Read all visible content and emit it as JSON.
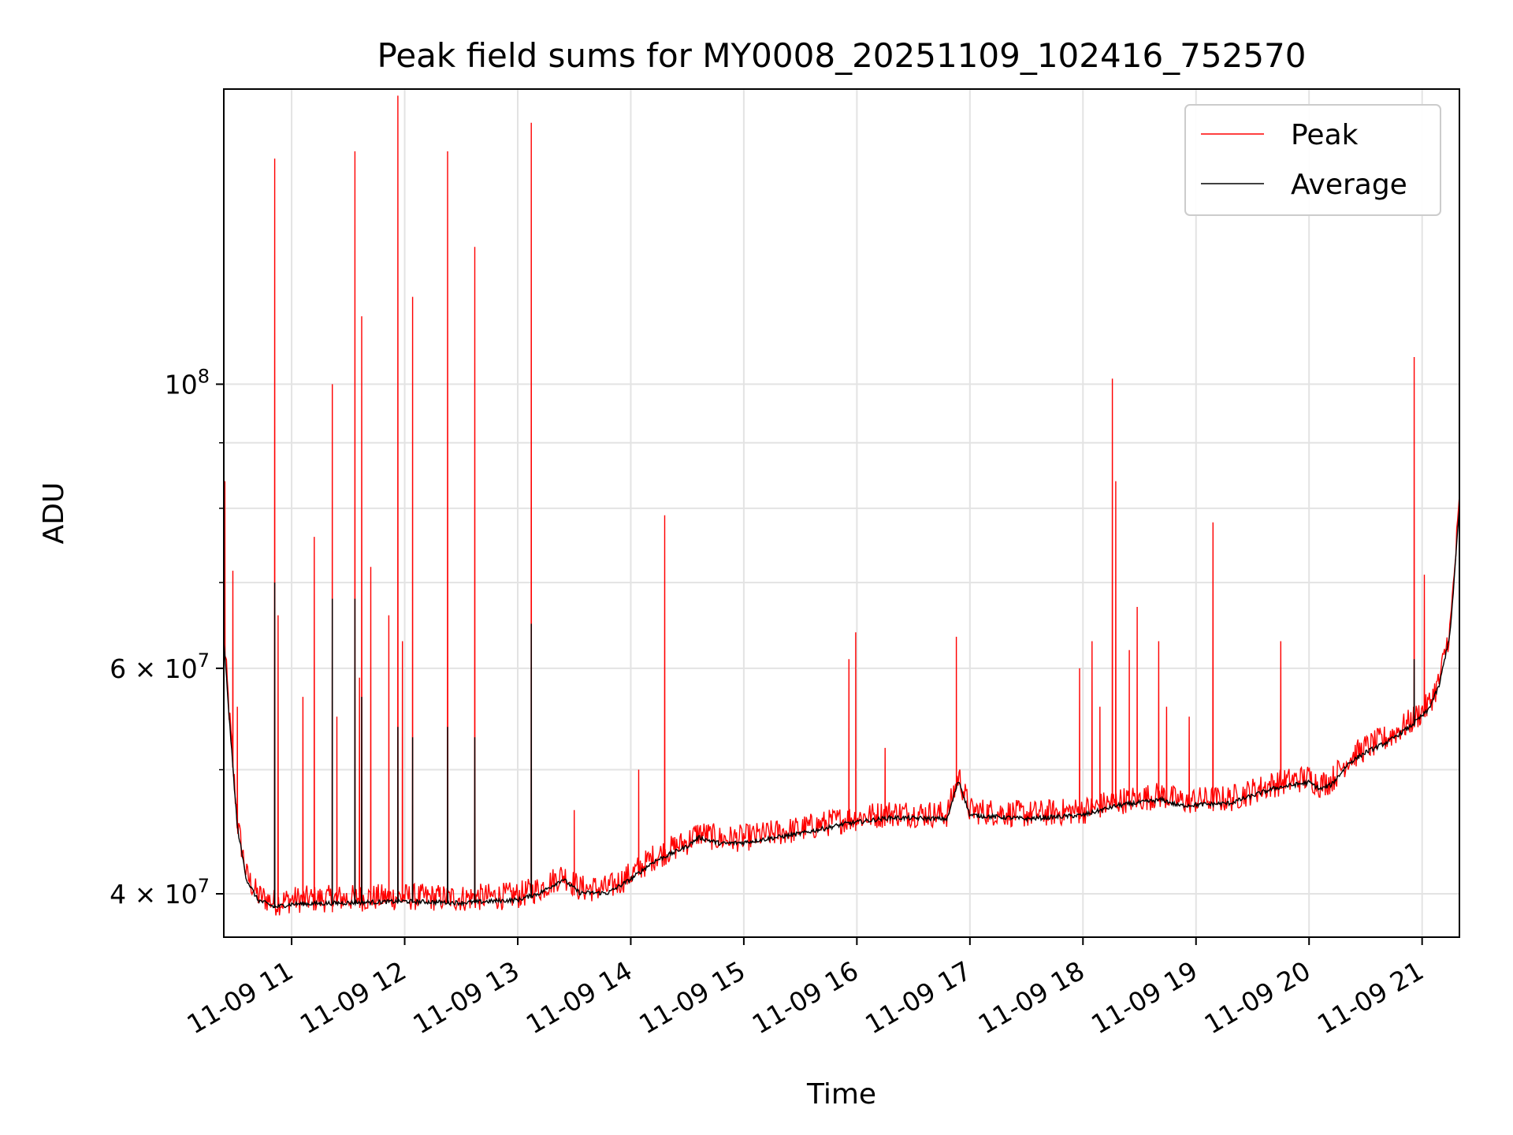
{
  "chart_data": {
    "type": "line",
    "title": "Peak field sums for MY0008_20251109_102416_752570",
    "xlabel": "Time",
    "ylabel": "ADU",
    "yscale": "log",
    "grid": true,
    "legend_position": "top-right",
    "xlim_hours": [
      10.4,
      21.33
    ],
    "ylim": [
      37000000,
      170000000
    ],
    "x_ticks": [
      {
        "hour": 11,
        "label": "11-09 11"
      },
      {
        "hour": 12,
        "label": "11-09 12"
      },
      {
        "hour": 13,
        "label": "11-09 13"
      },
      {
        "hour": 14,
        "label": "11-09 14"
      },
      {
        "hour": 15,
        "label": "11-09 15"
      },
      {
        "hour": 16,
        "label": "11-09 16"
      },
      {
        "hour": 17,
        "label": "11-09 17"
      },
      {
        "hour": 18,
        "label": "11-09 18"
      },
      {
        "hour": 19,
        "label": "11-09 19"
      },
      {
        "hour": 20,
        "label": "11-09 20"
      },
      {
        "hour": 21,
        "label": "11-09 21"
      }
    ],
    "y_ticks": [
      {
        "value": 40000000,
        "base": "4",
        "exp": "7"
      },
      {
        "value": 60000000,
        "base": "6",
        "exp": "7"
      },
      {
        "value": 100000000,
        "base": "10",
        "exp": "8"
      }
    ],
    "y_minor_ticks": [
      50000000,
      70000000,
      80000000,
      90000000
    ],
    "series": [
      {
        "name": "Peak",
        "color": "#ff0000",
        "spikes": [
          [
            10.41,
            84000000
          ],
          [
            10.48,
            71500000
          ],
          [
            10.52,
            56000000
          ],
          [
            10.85,
            150000000
          ],
          [
            10.88,
            66000000
          ],
          [
            11.1,
            57000000
          ],
          [
            11.2,
            76000000
          ],
          [
            11.36,
            100000000
          ],
          [
            11.4,
            55000000
          ],
          [
            11.56,
            152000000
          ],
          [
            11.6,
            59000000
          ],
          [
            11.62,
            113000000
          ],
          [
            11.7,
            72000000
          ],
          [
            11.86,
            66000000
          ],
          [
            11.94,
            168000000
          ],
          [
            11.98,
            63000000
          ],
          [
            12.07,
            117000000
          ],
          [
            12.38,
            152000000
          ],
          [
            12.62,
            128000000
          ],
          [
            13.12,
            160000000
          ],
          [
            13.5,
            46500000
          ],
          [
            14.07,
            50000000
          ],
          [
            14.3,
            79000000
          ],
          [
            15.93,
            61000000
          ],
          [
            15.99,
            64000000
          ],
          [
            16.25,
            52000000
          ],
          [
            16.88,
            63500000
          ],
          [
            17.97,
            60000000
          ],
          [
            18.08,
            63000000
          ],
          [
            18.15,
            56000000
          ],
          [
            18.26,
            101000000
          ],
          [
            18.29,
            84000000
          ],
          [
            18.41,
            62000000
          ],
          [
            18.48,
            67000000
          ],
          [
            18.67,
            63000000
          ],
          [
            18.74,
            56000000
          ],
          [
            18.94,
            55000000
          ],
          [
            19.15,
            78000000
          ],
          [
            19.75,
            63000000
          ],
          [
            20.93,
            105000000
          ],
          [
            21.02,
            71000000
          ]
        ]
      },
      {
        "name": "Average",
        "color": "#000000",
        "baseline": [
          [
            10.4,
            63000000
          ],
          [
            10.46,
            53000000
          ],
          [
            10.52,
            45000000
          ],
          [
            10.6,
            41000000
          ],
          [
            10.7,
            39500000
          ],
          [
            10.85,
            39000000
          ],
          [
            11.0,
            39200000
          ],
          [
            11.5,
            39300000
          ],
          [
            12.0,
            39400000
          ],
          [
            12.5,
            39300000
          ],
          [
            13.0,
            39500000
          ],
          [
            13.2,
            40000000
          ],
          [
            13.4,
            41000000
          ],
          [
            13.55,
            40000000
          ],
          [
            13.8,
            40000000
          ],
          [
            14.0,
            41000000
          ],
          [
            14.2,
            42300000
          ],
          [
            14.5,
            43500000
          ],
          [
            14.6,
            44200000
          ],
          [
            14.8,
            43700000
          ],
          [
            15.0,
            43800000
          ],
          [
            15.5,
            44500000
          ],
          [
            15.9,
            45300000
          ],
          [
            16.3,
            45800000
          ],
          [
            16.8,
            45700000
          ],
          [
            16.9,
            49000000
          ],
          [
            17.0,
            46000000
          ],
          [
            17.5,
            45700000
          ],
          [
            18.0,
            46000000
          ],
          [
            18.3,
            46800000
          ],
          [
            18.7,
            47300000
          ],
          [
            18.85,
            46800000
          ],
          [
            19.3,
            47000000
          ],
          [
            19.7,
            48300000
          ],
          [
            20.0,
            48800000
          ],
          [
            20.1,
            48200000
          ],
          [
            20.2,
            48600000
          ],
          [
            20.35,
            50500000
          ],
          [
            20.5,
            51500000
          ],
          [
            20.7,
            52500000
          ],
          [
            20.9,
            54000000
          ],
          [
            21.05,
            55500000
          ],
          [
            21.15,
            58000000
          ],
          [
            21.25,
            64000000
          ],
          [
            21.33,
            80000000
          ]
        ],
        "spikes": [
          [
            10.85,
            70000000
          ],
          [
            11.36,
            68000000
          ],
          [
            11.56,
            68000000
          ],
          [
            11.62,
            57000000
          ],
          [
            11.94,
            54000000
          ],
          [
            12.07,
            53000000
          ],
          [
            12.38,
            54000000
          ],
          [
            12.62,
            53000000
          ],
          [
            13.12,
            65000000
          ],
          [
            20.93,
            61000000
          ]
        ]
      }
    ]
  }
}
